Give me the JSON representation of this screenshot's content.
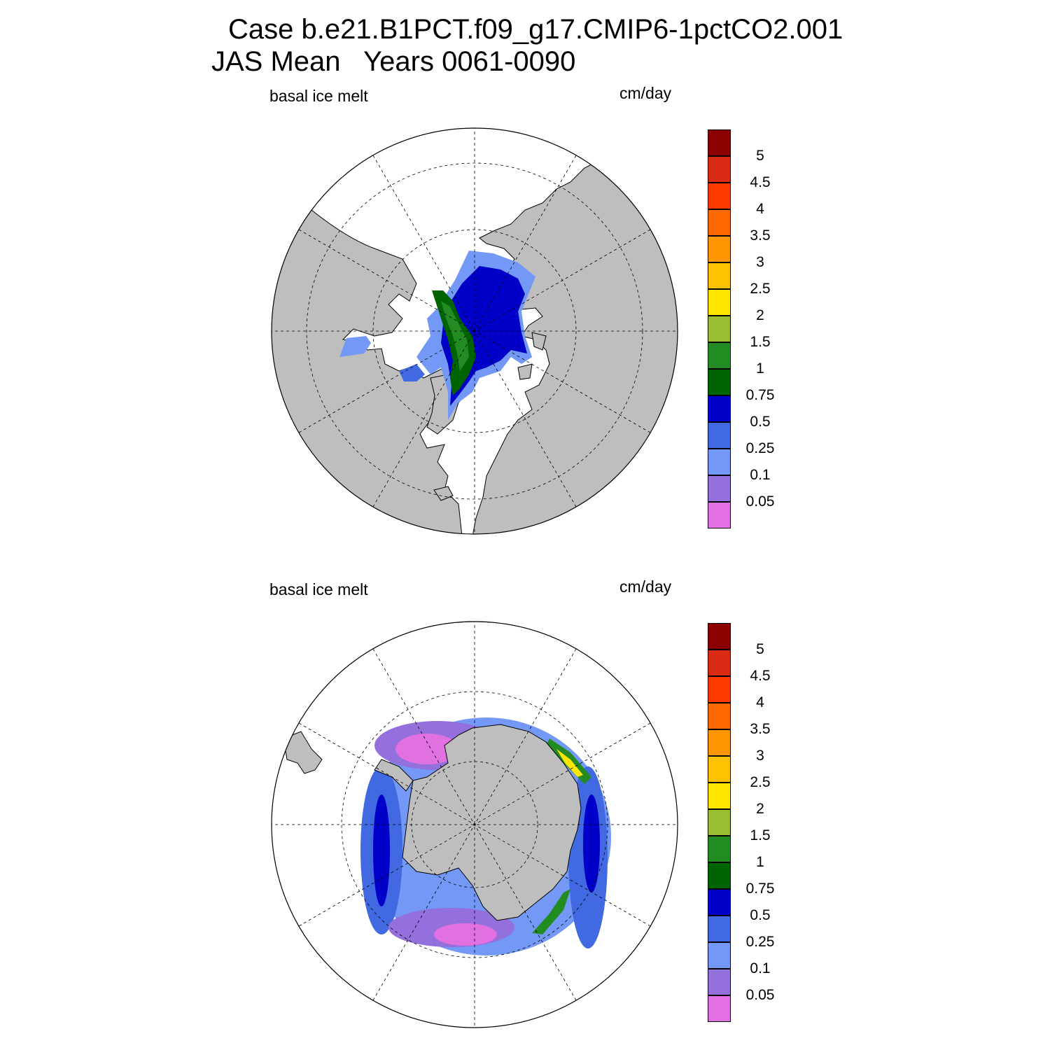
{
  "title": {
    "line1": "Case b.e21.B1PCT.f09_g17.CMIP6-1pctCO2.001",
    "line2": "JAS Mean   Years 0061-0090"
  },
  "panels": [
    {
      "id": "north",
      "variable_label": "basal ice melt",
      "units_label": "cm/day",
      "hemisphere": "Arctic"
    },
    {
      "id": "south",
      "variable_label": "basal ice melt",
      "units_label": "cm/day",
      "hemisphere": "Antarctic"
    }
  ],
  "colorbar": {
    "levels": [
      "5",
      "4.5",
      "4",
      "3.5",
      "3",
      "2.5",
      "2",
      "1.5",
      "1",
      "0.75",
      "0.5",
      "0.25",
      "0.1",
      "0.05"
    ],
    "colors": [
      "#8b0000",
      "#d92b14",
      "#ff3a00",
      "#ff6a00",
      "#ff9600",
      "#ffc200",
      "#ffe600",
      "#9bbd32",
      "#228b22",
      "#006400",
      "#0000c8",
      "#4169e1",
      "#7398f5",
      "#9370db",
      "#e170e1"
    ]
  },
  "map_colors": {
    "land": "#bebebe",
    "ocean": "#ffffff",
    "grid": "#000000"
  }
}
